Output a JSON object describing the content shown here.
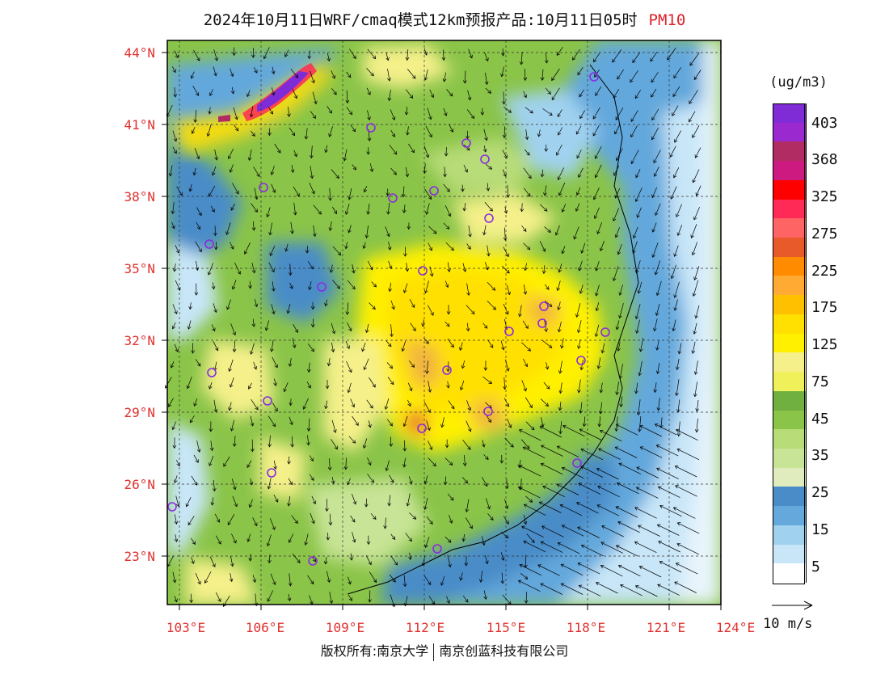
{
  "header": {
    "title": "2024年10月11日WRF/cmaq模式12km预报产品:10月11日05时",
    "pollutant": "PM10"
  },
  "axes": {
    "lat_labels": [
      "44°N",
      "41°N",
      "38°N",
      "35°N",
      "32°N",
      "29°N",
      "26°N",
      "23°N"
    ],
    "lon_labels": [
      "103°E",
      "106°E",
      "109°E",
      "112°E",
      "115°E",
      "118°E",
      "121°E",
      "124°E"
    ]
  },
  "legend": {
    "unit": "(ug/m3)",
    "labels": [
      "403",
      "368",
      "325",
      "275",
      "225",
      "175",
      "125",
      "75",
      "45",
      "35",
      "25",
      "15",
      "5"
    ],
    "colors": [
      "#7f2bd6",
      "#9a2ad0",
      "#b02c63",
      "#cc1a80",
      "#ff0000",
      "#ff2a55",
      "#ff6464",
      "#e85a2a",
      "#ff8c00",
      "#ffaa33",
      "#ffc000",
      "#ffe000",
      "#fff000",
      "#f5f08a",
      "#f0f05a",
      "#70b040",
      "#8ac448",
      "#b8dc78",
      "#c8e496",
      "#e0ecbe",
      "#4a8cc8",
      "#64a8dc",
      "#a0d2f0",
      "#c8e6f8",
      "#ffffff"
    ]
  },
  "wind_reference": "10 m/s",
  "footer": {
    "left": "版权所有:南京大学",
    "right": "南京创蓝科技有限公司"
  }
}
